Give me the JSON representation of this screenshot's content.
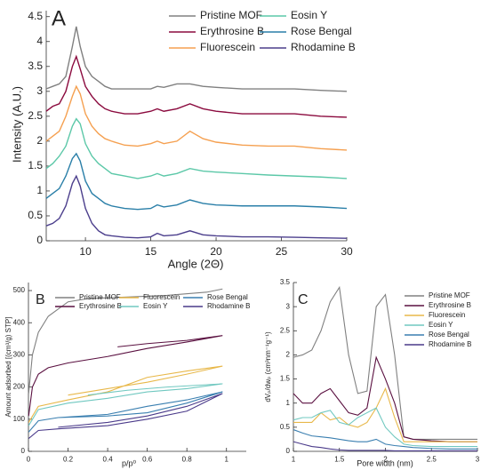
{
  "chart_data": [
    {
      "type": "line",
      "label": "A",
      "xlabel": "Angle (2Θ)",
      "ylabel": "Intensity (A.U.)",
      "xlim": [
        7,
        30
      ],
      "xticks": [
        10,
        15,
        20,
        25,
        30
      ],
      "ylim": [
        0,
        4.62
      ],
      "yticks": [
        0,
        0.5,
        1,
        1.5,
        2,
        2.5,
        3,
        3.5,
        4,
        4.5
      ],
      "x": [
        7,
        7.5,
        8,
        8.5,
        9,
        9.3,
        9.6,
        10,
        10.5,
        11,
        11.5,
        12,
        13,
        14,
        15,
        15.5,
        16,
        17,
        18,
        19,
        20,
        22,
        24,
        26,
        28,
        30
      ],
      "series": [
        {
          "name": "Pristine MOF",
          "color": "#808080",
          "values": [
            3.05,
            3.1,
            3.15,
            3.3,
            3.9,
            4.3,
            3.9,
            3.5,
            3.3,
            3.2,
            3.1,
            3.05,
            3.05,
            3.05,
            3.05,
            3.1,
            3.08,
            3.15,
            3.15,
            3.1,
            3.08,
            3.05,
            3.05,
            3.05,
            3.02,
            3.0
          ]
        },
        {
          "name": "Erythrosine B",
          "color": "#8b0a3e",
          "values": [
            2.6,
            2.7,
            2.75,
            3.0,
            3.5,
            3.7,
            3.45,
            3.1,
            2.9,
            2.75,
            2.65,
            2.6,
            2.55,
            2.55,
            2.6,
            2.65,
            2.6,
            2.65,
            2.75,
            2.65,
            2.6,
            2.55,
            2.55,
            2.55,
            2.5,
            2.48
          ]
        },
        {
          "name": "Fluorescein",
          "color": "#f5a050",
          "values": [
            2.0,
            2.1,
            2.2,
            2.5,
            2.9,
            3.1,
            2.95,
            2.55,
            2.3,
            2.15,
            2.05,
            2.0,
            1.92,
            1.9,
            1.95,
            2.0,
            1.95,
            2.0,
            2.2,
            2.05,
            1.98,
            1.92,
            1.9,
            1.9,
            1.85,
            1.82
          ]
        },
        {
          "name": "Eosin Y",
          "color": "#5cc8a8",
          "values": [
            1.45,
            1.55,
            1.7,
            1.9,
            2.3,
            2.45,
            2.35,
            1.95,
            1.7,
            1.55,
            1.45,
            1.35,
            1.3,
            1.25,
            1.3,
            1.35,
            1.3,
            1.35,
            1.45,
            1.4,
            1.38,
            1.35,
            1.32,
            1.3,
            1.28,
            1.25
          ]
        },
        {
          "name": "Rose Bengal",
          "color": "#2a7fa8",
          "values": [
            0.85,
            0.95,
            1.05,
            1.3,
            1.65,
            1.75,
            1.6,
            1.2,
            0.95,
            0.85,
            0.75,
            0.7,
            0.65,
            0.63,
            0.65,
            0.72,
            0.68,
            0.72,
            0.82,
            0.75,
            0.72,
            0.7,
            0.7,
            0.7,
            0.68,
            0.65
          ]
        },
        {
          "name": "Rhodamine B",
          "color": "#4b3e8c",
          "values": [
            0.3,
            0.35,
            0.45,
            0.7,
            1.15,
            1.3,
            1.1,
            0.65,
            0.35,
            0.2,
            0.12,
            0.1,
            0.07,
            0.06,
            0.08,
            0.15,
            0.1,
            0.12,
            0.2,
            0.12,
            0.1,
            0.08,
            0.08,
            0.07,
            0.06,
            0.05
          ]
        }
      ]
    },
    {
      "type": "line",
      "label": "B",
      "xlabel": "p/p⁰",
      "ylabel": "Amount adsorbed [(cm³/g) STP]",
      "xlim": [
        0,
        1.1
      ],
      "xticks": [
        0,
        0.2,
        0.4,
        0.6,
        0.8,
        1
      ],
      "ylim": [
        0,
        525
      ],
      "yticks": [
        0,
        100,
        200,
        300,
        400,
        500
      ],
      "series": [
        {
          "name": "Pristine MOF",
          "color": "#808080",
          "x": [
            0.001,
            0.02,
            0.05,
            0.1,
            0.2,
            0.3,
            0.5,
            0.7,
            0.9,
            0.98
          ],
          "values": [
            180,
            300,
            370,
            420,
            465,
            475,
            480,
            485,
            495,
            505
          ]
        },
        {
          "name": "Erythrosine B",
          "color": "#5a1040",
          "x": [
            0.001,
            0.02,
            0.05,
            0.1,
            0.2,
            0.4,
            0.6,
            0.8,
            0.98,
            0.8,
            0.6,
            0.45
          ],
          "values": [
            110,
            200,
            240,
            260,
            275,
            295,
            320,
            340,
            360,
            345,
            335,
            325
          ]
        },
        {
          "name": "Fluorescein",
          "color": "#e8b84a",
          "x": [
            0.001,
            0.05,
            0.2,
            0.4,
            0.6,
            0.8,
            0.98,
            0.8,
            0.6,
            0.4,
            0.2
          ],
          "values": [
            90,
            140,
            160,
            185,
            230,
            250,
            265,
            240,
            215,
            195,
            175
          ]
        },
        {
          "name": "Eosin Y",
          "color": "#70c8c0",
          "x": [
            0.001,
            0.05,
            0.2,
            0.4,
            0.6,
            0.8,
            0.98,
            0.7,
            0.5,
            0.3
          ],
          "values": [
            80,
            130,
            150,
            165,
            185,
            195,
            210,
            200,
            190,
            175
          ]
        },
        {
          "name": "Rose Bengal",
          "color": "#3a7fb0",
          "x": [
            0.001,
            0.05,
            0.15,
            0.4,
            0.6,
            0.8,
            0.98,
            0.8,
            0.6,
            0.4,
            0.15
          ],
          "values": [
            60,
            95,
            105,
            115,
            140,
            160,
            185,
            150,
            120,
            110,
            105
          ]
        },
        {
          "name": "Rhodamine B",
          "color": "#4a3a8a",
          "x": [
            0.001,
            0.05,
            0.15,
            0.4,
            0.6,
            0.8,
            0.98,
            0.8,
            0.6,
            0.4,
            0.15
          ],
          "values": [
            40,
            65,
            70,
            80,
            100,
            125,
            180,
            140,
            110,
            90,
            75
          ]
        }
      ]
    },
    {
      "type": "line",
      "label": "C",
      "xlabel": "Pore width (nm)",
      "ylabel": "dVₚ/dwₚ (cm³nm⁻¹g⁻¹)",
      "xlim": [
        1,
        3
      ],
      "xticks": [
        1,
        1.5,
        2,
        2.5,
        3
      ],
      "ylim": [
        0,
        3.5
      ],
      "yticks": [
        0,
        0.5,
        1,
        1.5,
        2,
        2.5,
        3,
        3.5
      ],
      "x": [
        1,
        1.1,
        1.2,
        1.3,
        1.4,
        1.5,
        1.6,
        1.7,
        1.8,
        1.9,
        2.0,
        2.1,
        2.2,
        2.3,
        2.5,
        2.7,
        3.0
      ],
      "series": [
        {
          "name": "Pristine MOF",
          "color": "#808080",
          "values": [
            1.95,
            2.0,
            2.1,
            2.5,
            3.1,
            3.4,
            2.0,
            1.2,
            1.25,
            3.0,
            3.25,
            2.0,
            0.3,
            0.25,
            0.25,
            0.25,
            0.25
          ]
        },
        {
          "name": "Erythrosine B",
          "color": "#5a1040",
          "values": [
            1.2,
            1.0,
            1.0,
            1.2,
            1.3,
            1.05,
            0.8,
            0.75,
            0.9,
            1.95,
            1.5,
            1.0,
            0.3,
            0.25,
            0.22,
            0.2,
            0.2
          ]
        },
        {
          "name": "Fluorescein",
          "color": "#e8b84a",
          "values": [
            0.6,
            0.6,
            0.6,
            0.8,
            0.65,
            0.7,
            0.55,
            0.5,
            0.6,
            0.9,
            1.3,
            0.7,
            0.2,
            0.2,
            0.2,
            0.2,
            0.2
          ]
        },
        {
          "name": "Eosin Y",
          "color": "#70c8c0",
          "values": [
            0.65,
            0.7,
            0.7,
            0.8,
            0.85,
            0.6,
            0.55,
            0.7,
            0.8,
            0.9,
            0.5,
            0.3,
            0.15,
            0.12,
            0.1,
            0.1,
            0.1
          ]
        },
        {
          "name": "Rose Bengal",
          "color": "#3a7fb0",
          "values": [
            0.45,
            0.38,
            0.32,
            0.3,
            0.28,
            0.25,
            0.22,
            0.2,
            0.2,
            0.25,
            0.15,
            0.12,
            0.1,
            0.08,
            0.06,
            0.05,
            0.05
          ]
        },
        {
          "name": "Rhodamine B",
          "color": "#4a3a8a",
          "values": [
            0.2,
            0.15,
            0.1,
            0.08,
            0.05,
            0.03,
            0.02,
            0.02,
            0.02,
            0.02,
            0.02,
            0.01,
            0.01,
            0.01,
            0.01,
            0.01,
            0.01
          ]
        }
      ]
    }
  ]
}
